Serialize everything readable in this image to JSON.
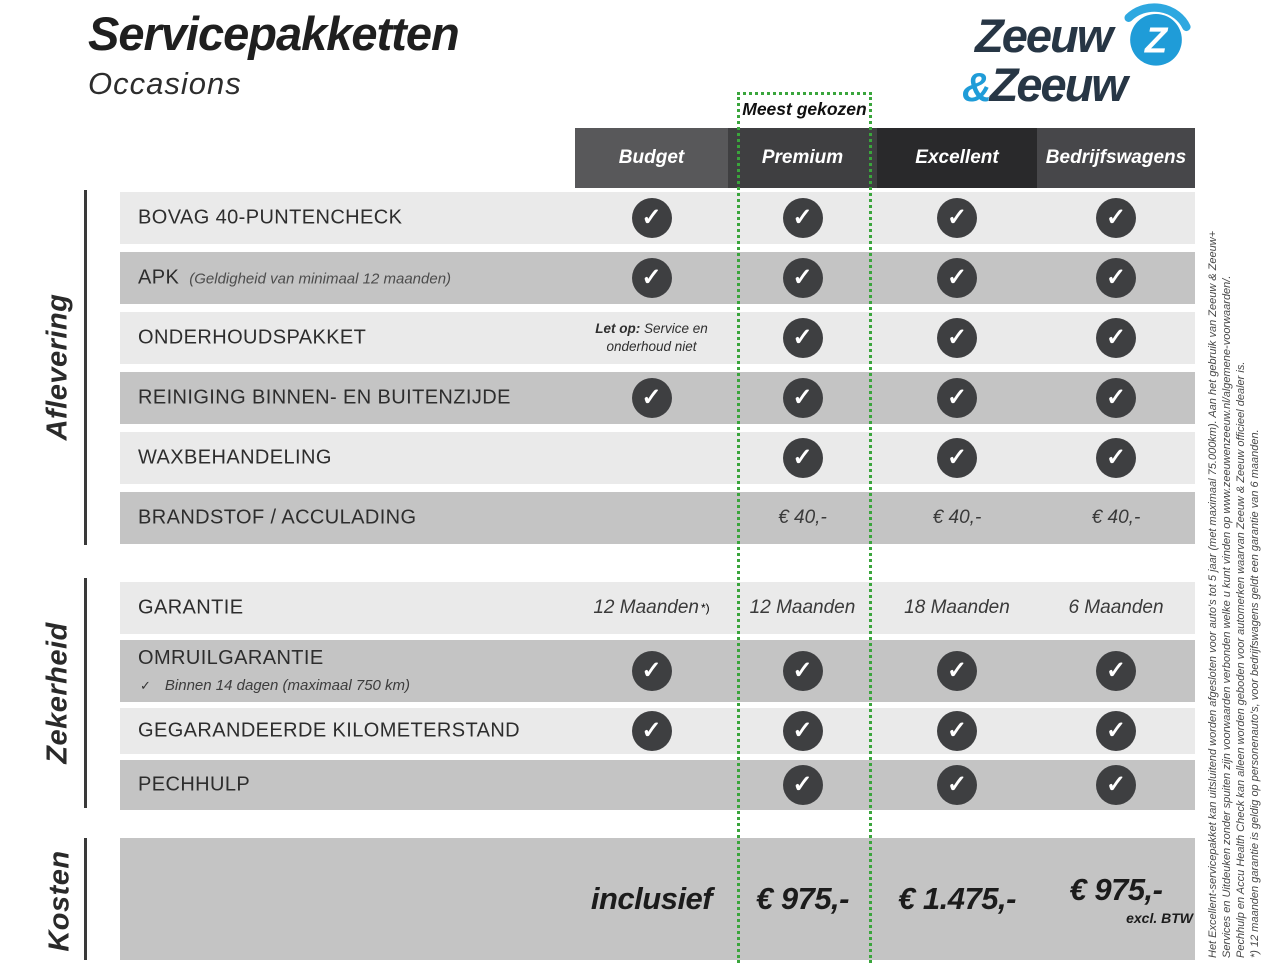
{
  "page": {
    "title": "Servicepakketten",
    "subtitle": "Occasions"
  },
  "logo": {
    "word1": "Zeeuw",
    "ampersand": "&",
    "word2": "Zeeuw",
    "icon": "z-swoosh-icon"
  },
  "banner": {
    "most_chosen": "Meest gekozen"
  },
  "columns": [
    {
      "label": "Budget",
      "color": "#58585a"
    },
    {
      "label": "Premium",
      "color": "#3f3f41"
    },
    {
      "label": "Excellent",
      "color": "#29292b"
    },
    {
      "label": "Bedrijfswagens",
      "color": "#47474a"
    }
  ],
  "sections": [
    {
      "name": "Aflevering",
      "rows": [
        {
          "label": "BOVAG 40-PUNTENCHECK",
          "cells": [
            {
              "type": "check"
            },
            {
              "type": "check"
            },
            {
              "type": "check"
            },
            {
              "type": "check"
            }
          ]
        },
        {
          "label": "APK",
          "label_note": "(Geldigheid van minimaal 12 maanden)",
          "cells": [
            {
              "type": "check"
            },
            {
              "type": "check"
            },
            {
              "type": "check"
            },
            {
              "type": "check"
            }
          ]
        },
        {
          "label": "ONDERHOUDSPAKKET",
          "cells": [
            {
              "type": "note",
              "bold": "Let op:",
              "value": "Service en onderhoud niet"
            },
            {
              "type": "check"
            },
            {
              "type": "check"
            },
            {
              "type": "check"
            }
          ]
        },
        {
          "label": "REINIGING BINNEN- EN BUITENZIJDE",
          "cells": [
            {
              "type": "check"
            },
            {
              "type": "check"
            },
            {
              "type": "check"
            },
            {
              "type": "check"
            }
          ]
        },
        {
          "label": "WAXBEHANDELING",
          "cells": [
            {
              "type": "empty"
            },
            {
              "type": "check"
            },
            {
              "type": "check"
            },
            {
              "type": "check"
            }
          ]
        },
        {
          "label": "BRANDSTOF / ACCULADING",
          "cells": [
            {
              "type": "empty"
            },
            {
              "type": "text",
              "value": "€ 40,-"
            },
            {
              "type": "text",
              "value": "€ 40,-"
            },
            {
              "type": "text",
              "value": "€ 40,-"
            }
          ]
        }
      ]
    },
    {
      "name": "Zekerheid",
      "rows": [
        {
          "label": "GARANTIE",
          "cells": [
            {
              "type": "text",
              "value": "12 Maanden",
              "sup": "*)"
            },
            {
              "type": "text",
              "value": "12 Maanden"
            },
            {
              "type": "text",
              "value": "18 Maanden"
            },
            {
              "type": "text",
              "value": "6 Maanden"
            }
          ]
        },
        {
          "label": "OMRUILGARANTIE",
          "sub_icon": "✓",
          "sub": "Binnen 14 dagen (maximaal 750 km)",
          "cells": [
            {
              "type": "check"
            },
            {
              "type": "check"
            },
            {
              "type": "check"
            },
            {
              "type": "check"
            }
          ]
        },
        {
          "label": "GEGARANDEERDE KILOMETERSTAND",
          "cells": [
            {
              "type": "check"
            },
            {
              "type": "check"
            },
            {
              "type": "check"
            },
            {
              "type": "check"
            }
          ]
        },
        {
          "label": "PECHHULP",
          "cells": [
            {
              "type": "empty"
            },
            {
              "type": "check"
            },
            {
              "type": "check"
            },
            {
              "type": "check"
            }
          ]
        }
      ]
    },
    {
      "name": "Kosten"
    }
  ],
  "cost": {
    "values": [
      {
        "value": "inclusief"
      },
      {
        "value": "€ 975,-"
      },
      {
        "value": "€ 1.475,-"
      },
      {
        "value": "€ 975,-",
        "note": "excl. BTW"
      }
    ]
  },
  "footnotes": [
    "Het Excellent-servicepakket kan uitsluitend worden afgesloten voor auto's tot 5 jaar (met maximaal 75.000km). Aan het gebruik van Zeeuw & Zeeuw+",
    "Services en Uitdeuken zonder spuiten zijn voorwaarden verbonden welke u kunt vinden op www.zeeuwenzeeuw.nl/algemene-voorwaarden/.",
    "Pechhulp en Accu Health Check kan alleen worden geboden voor automerken waarvan Zeeuw & Zeeuw officieel dealer is.",
    "*) 12 maanden garantie is geldig op personenauto's, voor bedrijfswagens geldt een garantie van 6 maanden."
  ],
  "colors": {
    "accent_green": "#3aa53c",
    "logo_blue": "#1f9cd8",
    "logo_dark": "#273645",
    "row_light": "#eaeaea",
    "row_dark": "#c4c4c4",
    "check_circle": "#3e3f41"
  }
}
